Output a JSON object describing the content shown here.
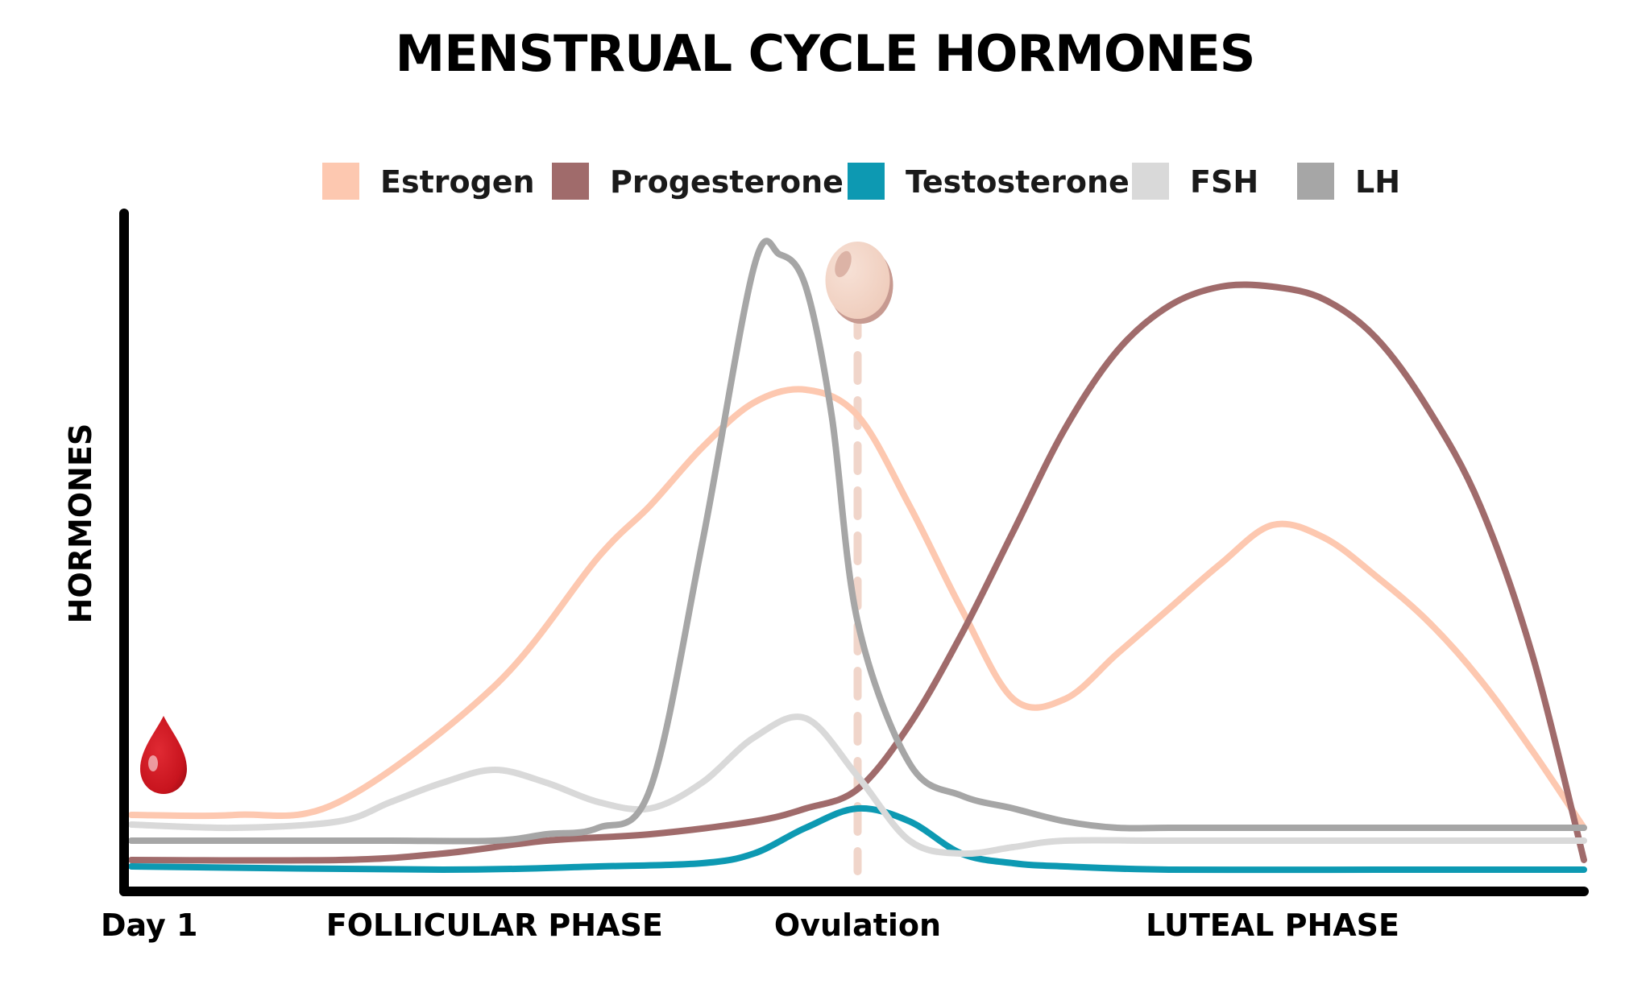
{
  "chart_data": {
    "type": "line",
    "title": "MENSTRUAL CYCLE HORMONES",
    "ylabel": "HORMONES",
    "xlabel": "",
    "x_tick_labels": [
      "Day 1",
      "FOLLICULAR PHASE",
      "Ovulation",
      "LUTEAL PHASE"
    ],
    "x_tick_positions": [
      0,
      7,
      14,
      22
    ],
    "xlim": [
      0,
      28
    ],
    "ylim": [
      0,
      100
    ],
    "grid": false,
    "legend_placement": "top",
    "ovulation_day": 14,
    "series": [
      {
        "name": "Estrogen",
        "color": "#fdc8b0",
        "x": [
          0,
          2,
          4,
          7,
          9,
          10,
          11,
          12,
          13,
          14,
          15,
          16,
          17,
          18,
          19,
          20,
          21,
          22,
          23,
          24,
          25,
          26,
          27,
          28
        ],
        "y": [
          10,
          10,
          12,
          30,
          50,
          58,
          67,
          74,
          76,
          72,
          58,
          42,
          28,
          28,
          35,
          42,
          49,
          55,
          53,
          47,
          40,
          31,
          20,
          8
        ]
      },
      {
        "name": "Progesterone",
        "color": "#a06b6b",
        "x": [
          0,
          4,
          6,
          8,
          10,
          12,
          13,
          14,
          15,
          16,
          17,
          18,
          19,
          20,
          21,
          22,
          23,
          24,
          25,
          26,
          27,
          28
        ],
        "y": [
          3,
          3,
          4,
          6,
          7,
          9,
          11,
          14,
          24,
          38,
          54,
          70,
          82,
          89,
          92,
          92,
          90,
          84,
          73,
          58,
          35,
          3
        ]
      },
      {
        "name": "Testosterone",
        "color": "#0d99b2",
        "x": [
          0,
          6,
          9,
          11,
          12,
          13,
          14,
          15,
          16,
          17,
          18,
          20,
          24,
          28
        ],
        "y": [
          2,
          1.5,
          2,
          2.5,
          4,
          8,
          11,
          9,
          4,
          2.5,
          2,
          1.5,
          1.5,
          1.5
        ]
      },
      {
        "name": "FSH",
        "color": "#d9d9d9",
        "x": [
          0,
          2,
          4,
          5,
          6,
          7,
          8,
          9,
          10,
          11,
          12,
          13,
          14,
          15,
          16,
          17,
          18,
          20,
          24,
          28
        ],
        "y": [
          8.5,
          8,
          9,
          12,
          15,
          17,
          15,
          12,
          11,
          15,
          22,
          25,
          16,
          6,
          4,
          5,
          6,
          6,
          6,
          6
        ]
      },
      {
        "name": "LH",
        "color": "#a6a6a6",
        "x": [
          0,
          3,
          5,
          7,
          8,
          9,
          10,
          11,
          12,
          12.5,
          13,
          13.5,
          14,
          15,
          16,
          17,
          18,
          19,
          20,
          22,
          24,
          28
        ],
        "y": [
          6,
          6,
          6,
          6,
          7,
          8,
          14,
          52,
          95,
          97,
          92,
          72,
          40,
          18,
          13,
          11,
          9,
          8,
          8,
          8,
          8,
          8
        ]
      }
    ]
  }
}
